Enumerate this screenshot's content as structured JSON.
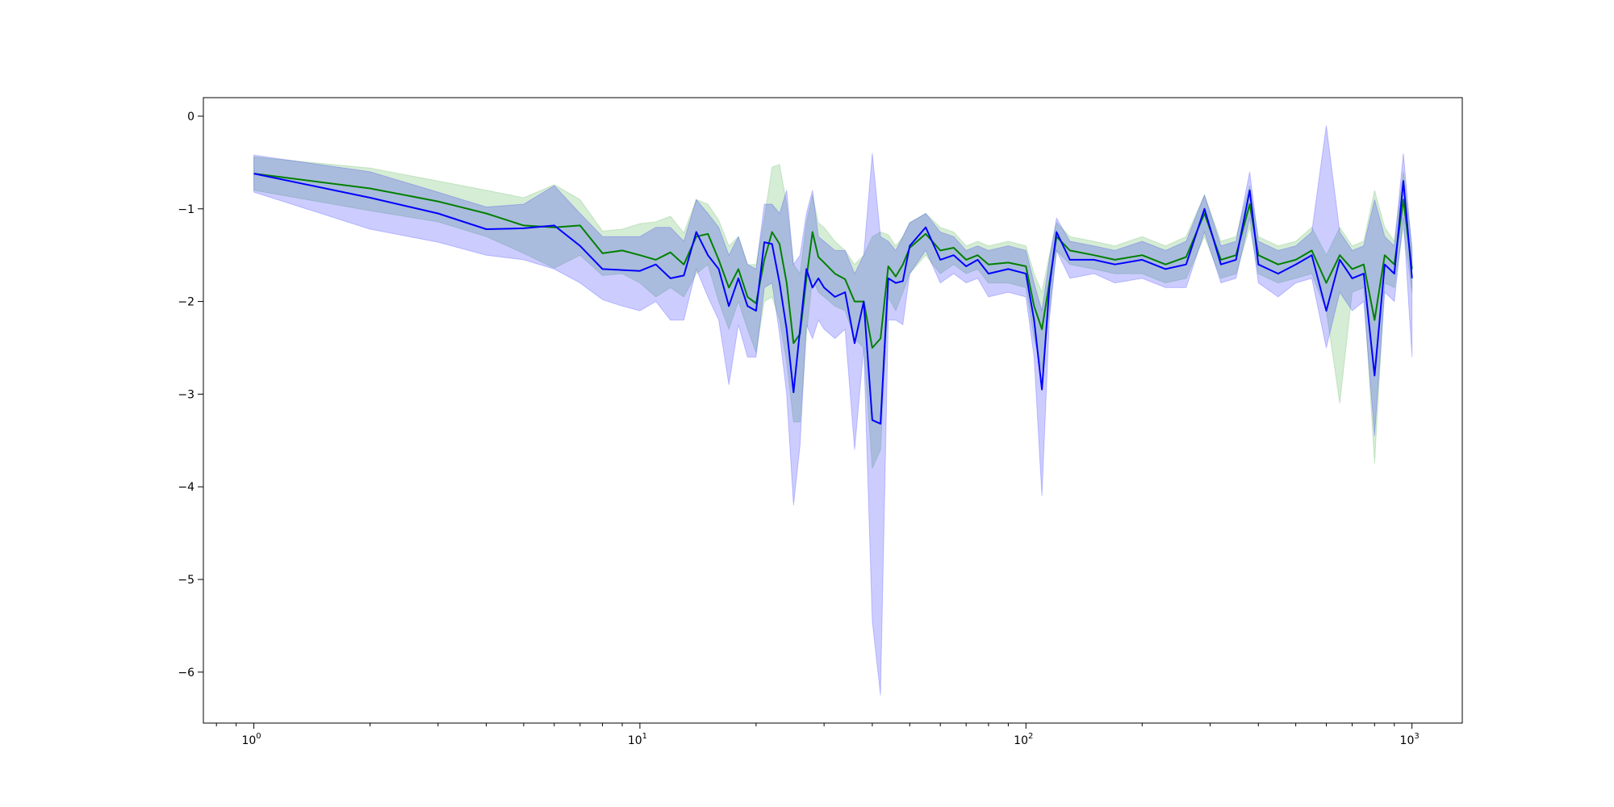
{
  "chart_data": {
    "type": "line",
    "title": "",
    "xlabel": "",
    "ylabel": "",
    "xscale": "log",
    "xlim": [
      0.74,
      1350
    ],
    "ylim": [
      -6.55,
      0.2
    ],
    "grid": false,
    "legend": "none",
    "x_ticks": [
      {
        "base": "10",
        "exp": "0",
        "value": 1
      },
      {
        "base": "10",
        "exp": "1",
        "value": 10
      },
      {
        "base": "10",
        "exp": "2",
        "value": 100
      },
      {
        "base": "10",
        "exp": "3",
        "value": 1000
      }
    ],
    "y_ticks": [
      {
        "label": "0",
        "value": 0
      },
      {
        "label": "−1",
        "value": -1
      },
      {
        "label": "−2",
        "value": -2
      },
      {
        "label": "−3",
        "value": -3
      },
      {
        "label": "−4",
        "value": -4
      },
      {
        "label": "−5",
        "value": -5
      },
      {
        "label": "−6",
        "value": -6
      }
    ],
    "series": [
      {
        "color": "#008000",
        "band_color": "#2ca02c",
        "x": [
          1,
          2,
          3,
          4,
          5,
          6,
          7,
          8,
          9,
          10,
          11,
          12,
          13,
          14,
          15,
          16,
          17,
          18,
          19,
          20,
          21,
          22,
          23,
          24,
          25,
          26,
          27,
          28,
          29,
          30,
          32,
          34,
          36,
          38,
          40,
          42,
          44,
          46,
          48,
          50,
          55,
          60,
          65,
          70,
          75,
          80,
          90,
          100,
          105,
          110,
          115,
          120,
          130,
          150,
          170,
          200,
          230,
          260,
          290,
          320,
          350,
          380,
          400,
          450,
          500,
          550,
          600,
          650,
          700,
          750,
          800,
          850,
          900,
          950,
          1000
        ],
        "y": [
          -0.62,
          -0.78,
          -0.92,
          -1.05,
          -1.18,
          -1.2,
          -1.18,
          -1.48,
          -1.45,
          -1.5,
          -1.55,
          -1.47,
          -1.6,
          -1.3,
          -1.27,
          -1.55,
          -1.85,
          -1.65,
          -1.95,
          -2.02,
          -1.55,
          -1.25,
          -1.38,
          -1.8,
          -2.45,
          -2.35,
          -1.75,
          -1.25,
          -1.52,
          -1.58,
          -1.7,
          -1.76,
          -2.0,
          -2.0,
          -2.5,
          -2.4,
          -1.62,
          -1.73,
          -1.6,
          -1.42,
          -1.27,
          -1.45,
          -1.42,
          -1.55,
          -1.5,
          -1.6,
          -1.58,
          -1.62,
          -2.05,
          -2.3,
          -1.8,
          -1.3,
          -1.45,
          -1.5,
          -1.55,
          -1.5,
          -1.6,
          -1.52,
          -1.05,
          -1.55,
          -1.5,
          -0.95,
          -1.5,
          -1.6,
          -1.55,
          -1.45,
          -1.8,
          -1.5,
          -1.65,
          -1.6,
          -2.2,
          -1.5,
          -1.6,
          -0.9,
          -1.65
        ],
        "upper": [
          -0.44,
          -0.56,
          -0.7,
          -0.8,
          -0.88,
          -0.74,
          -0.9,
          -1.24,
          -1.22,
          -1.16,
          -1.14,
          -1.08,
          -1.26,
          -0.9,
          -0.95,
          -1.12,
          -1.4,
          -1.3,
          -1.6,
          -1.6,
          -1.1,
          -0.55,
          -0.52,
          -0.95,
          -1.6,
          -1.7,
          -1.15,
          -0.85,
          -1.15,
          -1.2,
          -1.35,
          -1.45,
          -1.6,
          -1.5,
          -1.3,
          -1.25,
          -1.28,
          -1.4,
          -1.3,
          -1.15,
          -1.05,
          -1.2,
          -1.25,
          -1.4,
          -1.35,
          -1.4,
          -1.35,
          -1.4,
          -1.7,
          -1.9,
          -1.5,
          -1.15,
          -1.3,
          -1.35,
          -1.4,
          -1.3,
          -1.4,
          -1.3,
          -0.85,
          -1.35,
          -1.3,
          -0.75,
          -1.3,
          -1.4,
          -1.35,
          -1.2,
          -1.5,
          -1.2,
          -1.4,
          -1.35,
          -0.8,
          -1.2,
          -1.35,
          -0.6,
          -1.4
        ],
        "lower": [
          -0.8,
          -1.02,
          -1.14,
          -1.3,
          -1.48,
          -1.64,
          -1.5,
          -1.72,
          -1.7,
          -1.8,
          -1.95,
          -1.85,
          -1.95,
          -1.7,
          -1.6,
          -2.0,
          -2.3,
          -2.0,
          -2.3,
          -2.55,
          -2.0,
          -1.95,
          -2.2,
          -2.65,
          -3.3,
          -3.3,
          -2.35,
          -1.75,
          -1.9,
          -1.95,
          -2.05,
          -2.1,
          -2.4,
          -2.5,
          -3.8,
          -3.6,
          -1.95,
          -2.1,
          -1.9,
          -1.7,
          -1.5,
          -1.7,
          -1.6,
          -1.7,
          -1.65,
          -1.8,
          -1.8,
          -1.85,
          -2.4,
          -2.75,
          -2.1,
          -1.45,
          -1.6,
          -1.65,
          -1.7,
          -1.7,
          -1.8,
          -1.75,
          -1.3,
          -1.75,
          -1.7,
          -1.2,
          -1.7,
          -1.8,
          -1.75,
          -1.7,
          -2.1,
          -3.1,
          -1.9,
          -1.85,
          -3.75,
          -1.8,
          -1.85,
          -1.2,
          -1.9
        ]
      },
      {
        "color": "#0000ff",
        "band_color": "#0000ff",
        "x": [
          1,
          2,
          3,
          4,
          5,
          6,
          7,
          8,
          9,
          10,
          11,
          12,
          13,
          14,
          15,
          16,
          17,
          18,
          19,
          20,
          21,
          22,
          23,
          24,
          25,
          26,
          27,
          28,
          29,
          30,
          32,
          34,
          36,
          38,
          40,
          42,
          44,
          46,
          48,
          50,
          55,
          60,
          65,
          70,
          75,
          80,
          90,
          100,
          105,
          110,
          115,
          120,
          130,
          150,
          170,
          200,
          230,
          260,
          290,
          320,
          350,
          380,
          400,
          450,
          500,
          550,
          600,
          650,
          700,
          750,
          800,
          850,
          900,
          950,
          1000
        ],
        "y": [
          -0.62,
          -0.88,
          -1.05,
          -1.22,
          -1.21,
          -1.18,
          -1.4,
          -1.65,
          -1.66,
          -1.67,
          -1.6,
          -1.75,
          -1.72,
          -1.25,
          -1.5,
          -1.65,
          -2.05,
          -1.75,
          -2.05,
          -2.1,
          -1.36,
          -1.38,
          -1.8,
          -2.3,
          -2.98,
          -2.3,
          -1.65,
          -1.85,
          -1.75,
          -1.85,
          -1.95,
          -1.9,
          -2.45,
          -2.0,
          -3.28,
          -3.32,
          -1.75,
          -1.8,
          -1.78,
          -1.4,
          -1.2,
          -1.55,
          -1.5,
          -1.62,
          -1.55,
          -1.7,
          -1.65,
          -1.7,
          -2.2,
          -2.95,
          -1.85,
          -1.25,
          -1.55,
          -1.55,
          -1.6,
          -1.55,
          -1.65,
          -1.6,
          -1.0,
          -1.6,
          -1.55,
          -0.8,
          -1.6,
          -1.7,
          -1.6,
          -1.5,
          -2.1,
          -1.55,
          -1.75,
          -1.7,
          -2.8,
          -1.6,
          -1.7,
          -0.7,
          -1.75
        ],
        "upper": [
          -0.42,
          -0.6,
          -0.82,
          -0.98,
          -0.95,
          -0.75,
          -1.05,
          -1.3,
          -1.3,
          -1.3,
          -1.2,
          -1.2,
          -1.35,
          -0.9,
          -1.05,
          -1.2,
          -1.5,
          -1.3,
          -1.6,
          -1.65,
          -0.95,
          -0.95,
          -1.05,
          -0.8,
          -1.6,
          -1.5,
          -1.05,
          -0.8,
          -1.3,
          -1.35,
          -1.45,
          -1.45,
          -1.7,
          -1.5,
          -0.4,
          -1.3,
          -1.35,
          -1.45,
          -1.3,
          -1.15,
          -1.05,
          -1.25,
          -1.3,
          -1.45,
          -1.4,
          -1.45,
          -1.4,
          -1.45,
          -1.8,
          -2.1,
          -1.55,
          -1.1,
          -1.35,
          -1.4,
          -1.45,
          -1.35,
          -1.45,
          -1.35,
          -0.85,
          -1.4,
          -1.35,
          -0.6,
          -1.35,
          -1.45,
          -1.4,
          -1.25,
          -0.1,
          -1.25,
          -1.45,
          -1.4,
          -0.9,
          -1.3,
          -1.4,
          -0.4,
          -1.45
        ],
        "lower": [
          -0.82,
          -1.22,
          -1.36,
          -1.5,
          -1.55,
          -1.65,
          -1.8,
          -1.98,
          -2.05,
          -2.1,
          -2.0,
          -2.2,
          -2.2,
          -1.65,
          -1.95,
          -2.2,
          -2.9,
          -2.25,
          -2.6,
          -2.6,
          -1.85,
          -1.8,
          -2.35,
          -3.0,
          -4.2,
          -3.55,
          -2.25,
          -2.4,
          -2.2,
          -2.3,
          -2.4,
          -2.3,
          -3.6,
          -2.5,
          -5.45,
          -6.25,
          -2.2,
          -2.2,
          -2.25,
          -1.7,
          -1.45,
          -1.8,
          -1.7,
          -1.8,
          -1.75,
          -1.95,
          -1.9,
          -1.95,
          -2.6,
          -4.1,
          -2.2,
          -1.45,
          -1.75,
          -1.7,
          -1.8,
          -1.75,
          -1.85,
          -1.85,
          -1.25,
          -1.8,
          -1.75,
          -1.1,
          -1.8,
          -1.95,
          -1.8,
          -1.75,
          -2.5,
          -1.9,
          -2.1,
          -2.0,
          -3.45,
          -1.9,
          -2.0,
          -1.1,
          -2.6
        ]
      }
    ]
  }
}
